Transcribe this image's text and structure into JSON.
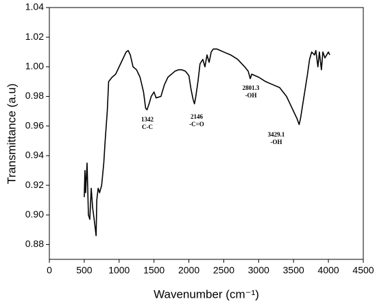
{
  "chart_data": {
    "type": "line",
    "xlabel": "Wavenumber (cm⁻¹)",
    "ylabel": "Transmittance (a.u)",
    "xlim": [
      0,
      4500
    ],
    "xticks": [
      0,
      500,
      1000,
      1500,
      2000,
      2500,
      3000,
      3500,
      4000,
      4500
    ],
    "ylim": [
      0.87,
      1.04
    ],
    "yticks": [
      0.88,
      {
        "value": 0.9,
        "label": "0.90"
      },
      0.92,
      0.94,
      0.96,
      0.98,
      {
        "value": 1,
        "label": "1.00"
      },
      1.02,
      1.04
    ],
    "grid": false,
    "series": [
      {
        "color": "#000000",
        "x": [
          500,
          510,
          520,
          540,
          560,
          580,
          600,
          620,
          640,
          660,
          670,
          680,
          700,
          720,
          750,
          780,
          800,
          830,
          850,
          900,
          950,
          1000,
          1050,
          1100,
          1130,
          1160,
          1200,
          1250,
          1300,
          1350,
          1380,
          1400,
          1430,
          1460,
          1500,
          1530,
          1600,
          1650,
          1700,
          1800,
          1850,
          1900,
          1950,
          2000,
          2030,
          2060,
          2080,
          2100,
          2130,
          2160,
          2200,
          2230,
          2260,
          2290,
          2320,
          2350,
          2400,
          2450,
          2500,
          2600,
          2700,
          2800,
          2850,
          2880,
          2900,
          3000,
          3100,
          3200,
          3300,
          3400,
          3450,
          3500,
          3550,
          3580,
          3600,
          3650,
          3700,
          3730,
          3760,
          3800,
          3820,
          3850,
          3870,
          3900,
          3920,
          3950,
          4000,
          4020
        ],
        "values": [
          0.912,
          0.93,
          0.915,
          0.935,
          0.9,
          0.897,
          0.918,
          0.905,
          0.898,
          0.89,
          0.886,
          0.91,
          0.918,
          0.915,
          0.92,
          0.935,
          0.95,
          0.97,
          0.99,
          0.993,
          0.995,
          1.0,
          1.005,
          1.01,
          1.011,
          1.008,
          1.0,
          0.998,
          0.993,
          0.983,
          0.972,
          0.971,
          0.975,
          0.98,
          0.983,
          0.979,
          0.98,
          0.988,
          0.993,
          0.997,
          0.998,
          0.998,
          0.997,
          0.994,
          0.985,
          0.978,
          0.975,
          0.98,
          0.99,
          1.002,
          1.005,
          1.0,
          1.008,
          1.003,
          1.01,
          1.012,
          1.012,
          1.011,
          1.01,
          1.008,
          1.005,
          1.0,
          0.997,
          0.992,
          0.995,
          0.993,
          0.99,
          0.988,
          0.986,
          0.98,
          0.975,
          0.97,
          0.965,
          0.961,
          0.965,
          0.98,
          0.995,
          1.005,
          1.01,
          1.008,
          1.011,
          1.0,
          1.01,
          0.998,
          1.01,
          1.006,
          1.01,
          1.008
        ]
      }
    ],
    "annotations": [
      {
        "lines": [
          "1342",
          "C-C"
        ]
      },
      {
        "lines": [
          "2146",
          "-C=O"
        ]
      },
      {
        "lines": [
          "2801.3",
          "-OH"
        ]
      },
      {
        "lines": [
          "3429.1",
          "-OH"
        ]
      }
    ]
  }
}
